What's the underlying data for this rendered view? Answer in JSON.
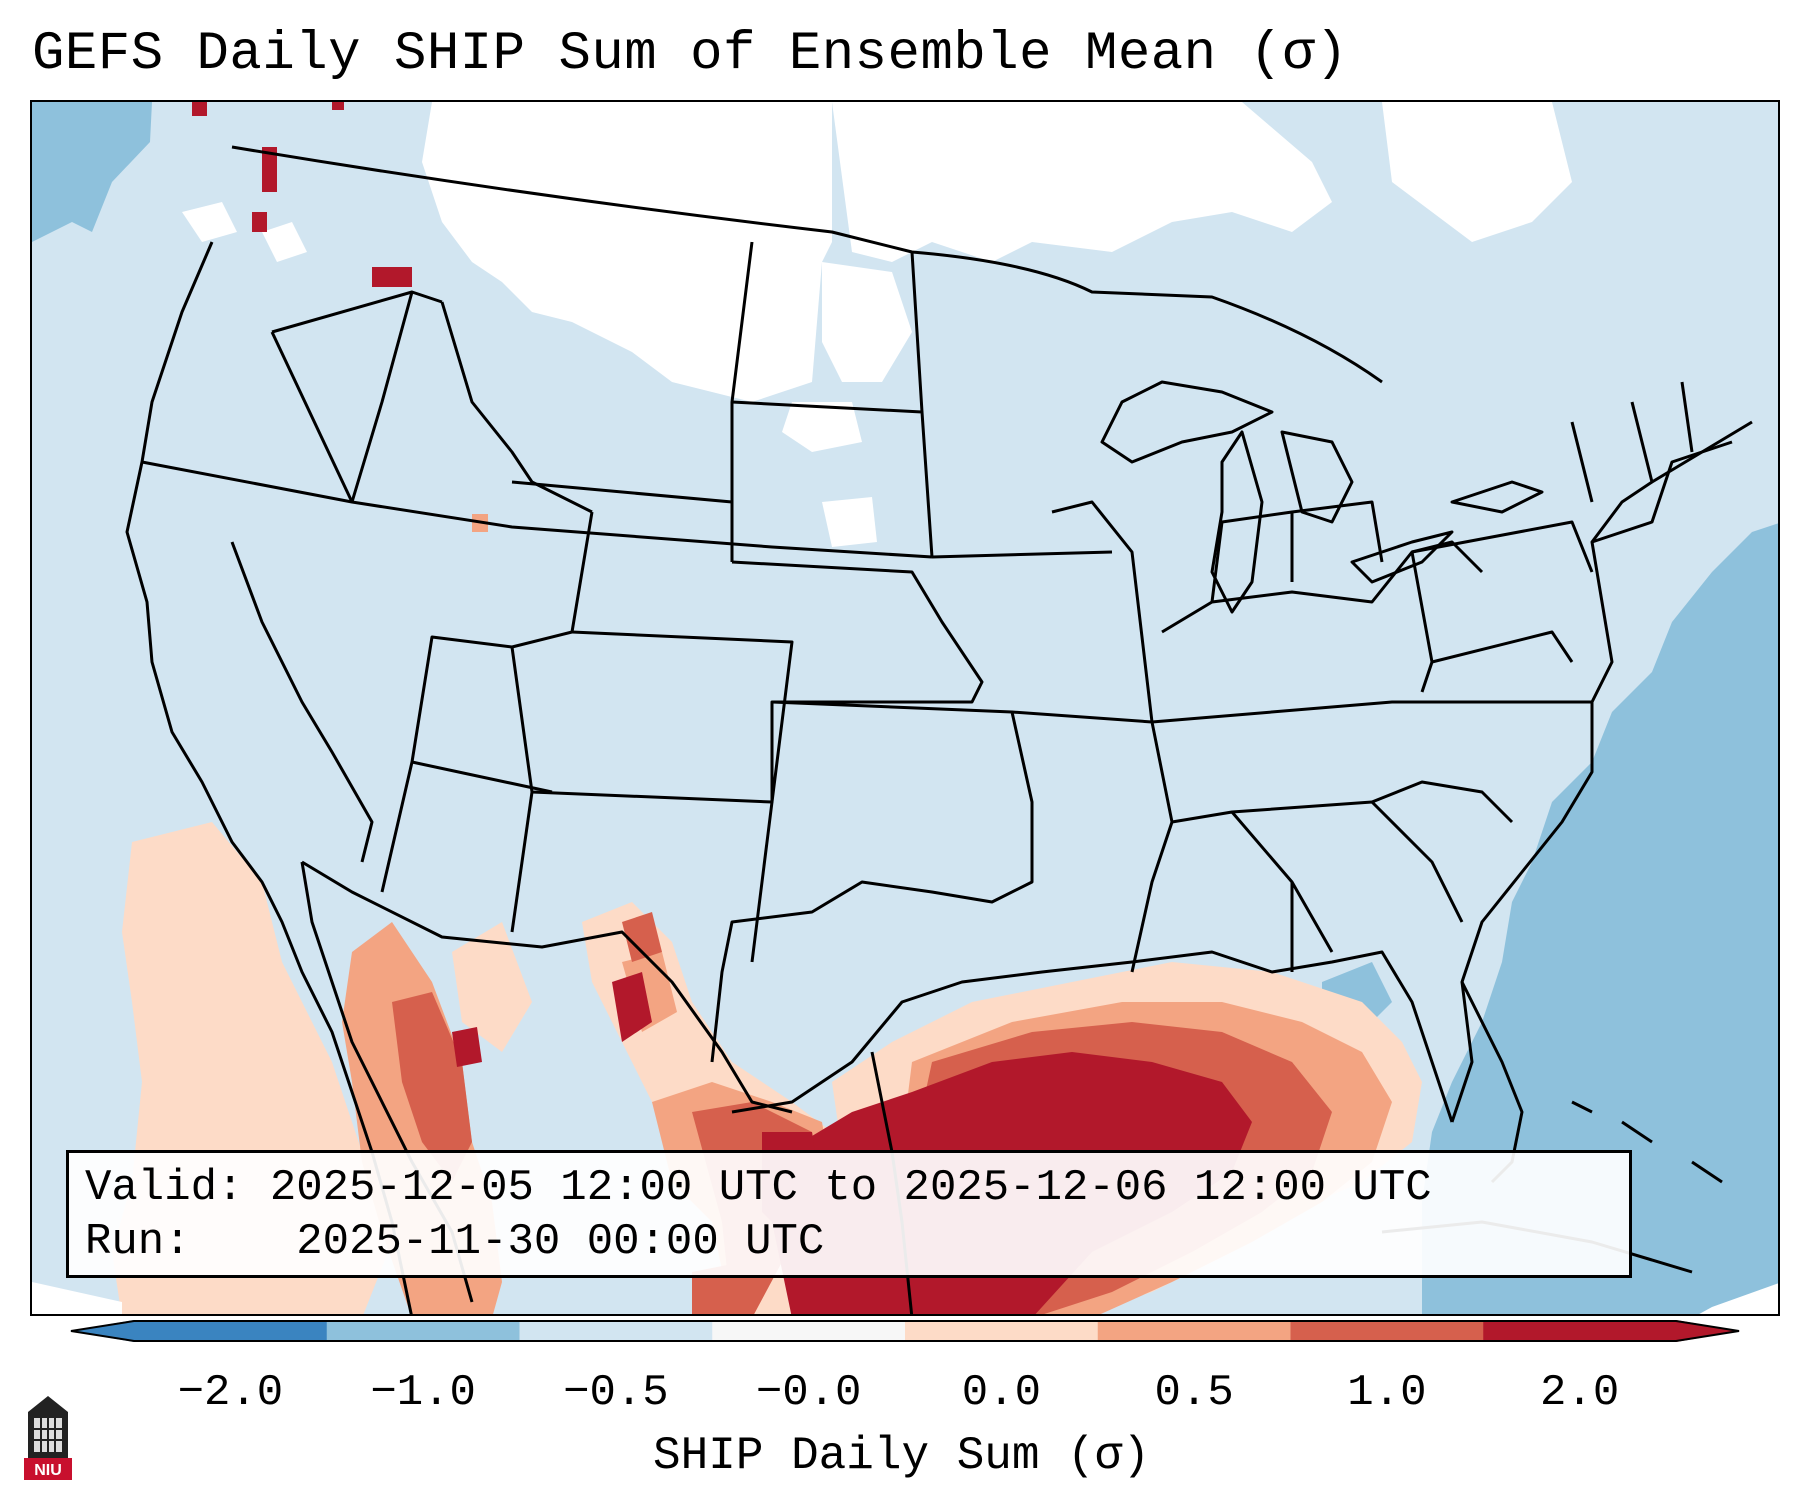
{
  "title": "GEFS Daily SHIP Sum of Ensemble Mean (σ)",
  "info": {
    "valid_label": "Valid:",
    "valid_value": "2025-12-05 12:00 UTC to 2025-12-06 12:00 UTC",
    "run_label": "Run:",
    "run_value": "2025-11-30 00:00 UTC"
  },
  "colorbar": {
    "label": "SHIP Daily Sum (σ)",
    "ticks": [
      "−2.0",
      "−1.0",
      "−0.5",
      "−0.0",
      "0.0",
      "0.5",
      "1.0",
      "2.0"
    ],
    "colors": [
      "#3a84c0",
      "#8ec1dc",
      "#d2e5f1",
      "#f7f7f7",
      "#fddbc7",
      "#f3a482",
      "#d6604d",
      "#b2182b"
    ],
    "extend": "both"
  },
  "map_legend": {
    "white_near_zero": "#ffffff",
    "light_negative": "#d2e5f1",
    "medium_negative": "#8ec1dc",
    "light_positive": "#fddbc7",
    "medium_positive": "#f3a482",
    "strong_positive": "#d6604d",
    "extreme_positive": "#b2182b"
  },
  "logo": {
    "text": "NIU",
    "icon": "university-seal-icon"
  }
}
